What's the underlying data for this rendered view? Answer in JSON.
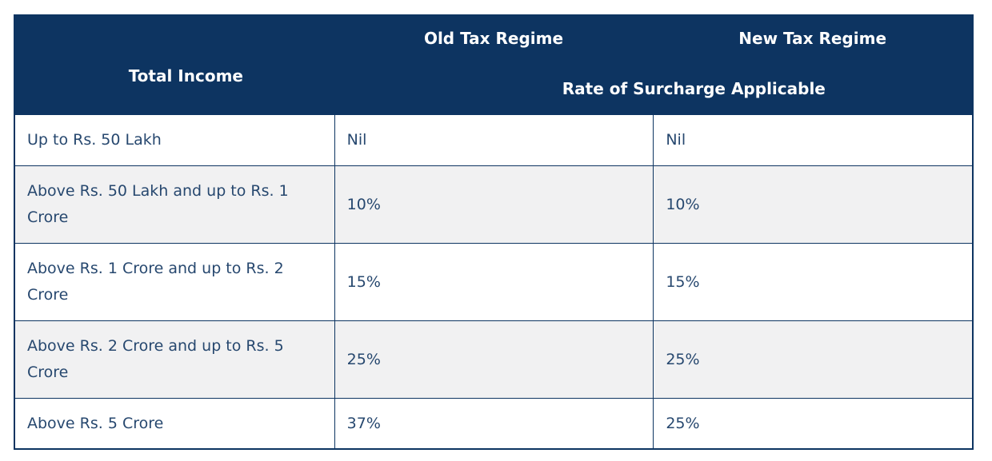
{
  "table": {
    "header": {
      "total_income": "Total Income",
      "old_regime": "Old Tax Regime",
      "new_regime": "New Tax Regime",
      "surcharge": "Rate of Surcharge Applicable"
    },
    "rows": [
      {
        "income": "Up to Rs. 50 Lakh",
        "old": "Nil",
        "new": "Nil"
      },
      {
        "income": "Above Rs. 50 Lakh and up to Rs. 1 Crore",
        "old": "10%",
        "new": "10%"
      },
      {
        "income": "Above Rs. 1 Crore and up to Rs. 2 Crore",
        "old": "15%",
        "new": "15%"
      },
      {
        "income": "Above Rs. 2 Crore and up to Rs. 5 Crore",
        "old": "25%",
        "new": "25%"
      },
      {
        "income": "Above Rs. 5 Crore",
        "old": "37%",
        "new": "25%"
      }
    ],
    "colors": {
      "header_bg": "#0d3461",
      "header_text": "#ffffff",
      "border": "#0d3461",
      "row_bg": "#ffffff",
      "row_alt_bg": "#f1f1f2",
      "body_text": "#27486f",
      "page_bg": "#ffffff"
    }
  }
}
